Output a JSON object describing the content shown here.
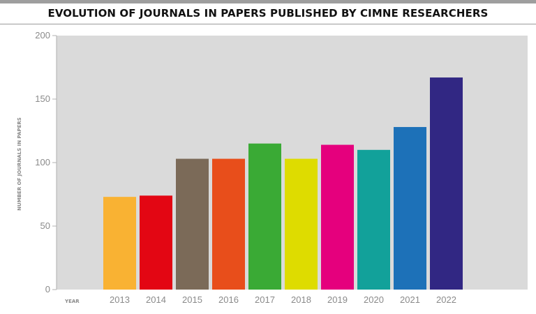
{
  "chart_data": {
    "type": "bar",
    "title": "EVOLUTION OF JOURNALS IN PAPERS PUBLISHED BY CIMNE RESEARCHERS",
    "xlabel": "YEAR",
    "ylabel": "NUMBER OF JOURNALS IN PAPERS",
    "categories": [
      "2013",
      "2014",
      "2015",
      "2016",
      "2017",
      "2018",
      "2019",
      "2020",
      "2021",
      "2022"
    ],
    "values": [
      73,
      74,
      103,
      103,
      115,
      103,
      114,
      110,
      128,
      167
    ],
    "colors": [
      "#f9b233",
      "#e30613",
      "#7b6a58",
      "#e84e1b",
      "#3aaa35",
      "#dedc00",
      "#e5007d",
      "#12a19a",
      "#1d71b8",
      "#312783"
    ],
    "ylim": [
      0,
      200
    ],
    "yticks": [
      "0",
      "50",
      "100",
      "150",
      "200"
    ],
    "plot_background": "#dadada",
    "grid": false
  }
}
